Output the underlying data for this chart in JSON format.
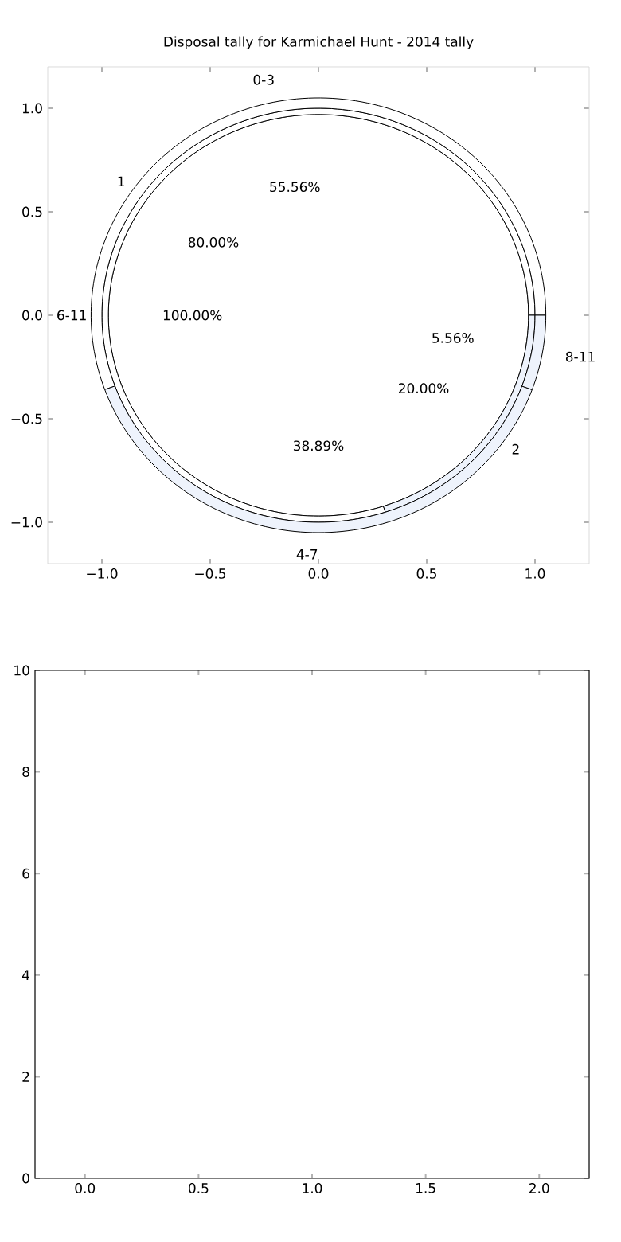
{
  "chart_data": [
    {
      "type": "scatter",
      "title": "Disposal tally for Karmichael Hunt - 2014 tally",
      "xlim": [
        -1.25,
        1.25
      ],
      "ylim": [
        -1.2,
        1.2
      ],
      "xticks": [
        {
          "value": -1,
          "label": "−1.0"
        },
        {
          "value": -0.5,
          "label": "−0.5"
        },
        {
          "value": 0,
          "label": "0.0"
        },
        {
          "value": 0.5,
          "label": "0.5"
        },
        {
          "value": 1,
          "label": "1.0"
        }
      ],
      "yticks": [
        {
          "value": -1,
          "label": "−1.0"
        },
        {
          "value": -0.5,
          "label": "−0.5"
        },
        {
          "value": 0,
          "label": "0.0"
        },
        {
          "value": 0.5,
          "label": "0.5"
        },
        {
          "value": 1,
          "label": "1.0"
        }
      ]
    },
    {
      "type": "donut",
      "categories": [
        "0-3",
        "4-7",
        "8-11"
      ],
      "values": [
        55.56,
        38.89,
        5.56
      ],
      "value_labels": [
        "55.56%",
        "38.89%",
        "5.56%"
      ],
      "colors": [
        "#ffffff",
        "#eef3fc",
        "#eef3fc"
      ]
    },
    {
      "type": "donut",
      "categories": [
        "1",
        "2"
      ],
      "values": [
        80,
        20
      ],
      "value_labels": [
        "80.00%",
        "20.00%"
      ],
      "colors": [
        "#ffffff",
        "#eef3fc"
      ]
    },
    {
      "type": "pie",
      "categories": [
        "6-11"
      ],
      "values": [
        100
      ],
      "value_labels": [
        "100.00%"
      ],
      "colors": [
        "#ffffff"
      ]
    },
    {
      "type": "scatter",
      "xlim": [
        -0.22,
        2.22
      ],
      "ylim": [
        0,
        10
      ],
      "xticks": [
        {
          "value": 0,
          "label": "0.0"
        },
        {
          "value": 0.5,
          "label": "0.5"
        },
        {
          "value": 1,
          "label": "1.0"
        },
        {
          "value": 1.5,
          "label": "1.5"
        },
        {
          "value": 2,
          "label": "2.0"
        }
      ],
      "yticks": [
        {
          "value": 0,
          "label": "0"
        },
        {
          "value": 2,
          "label": "2"
        },
        {
          "value": 4,
          "label": "4"
        },
        {
          "value": 6,
          "label": "6"
        },
        {
          "value": 8,
          "label": "8"
        },
        {
          "value": 10,
          "label": "10"
        }
      ]
    }
  ]
}
